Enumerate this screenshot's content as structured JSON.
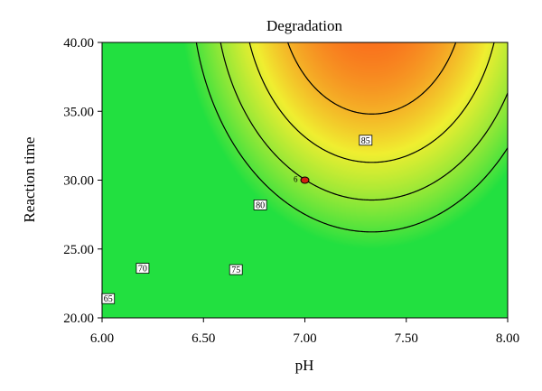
{
  "chart_data": {
    "type": "contour",
    "title": "Degradation",
    "xlabel": "pH",
    "ylabel": "Reaction time",
    "xlim": [
      6.0,
      8.0
    ],
    "ylim": [
      20.0,
      40.0
    ],
    "x_ticks": [
      "6.00",
      "6.50",
      "7.00",
      "7.50",
      "8.00"
    ],
    "y_ticks": [
      "20.00",
      "25.00",
      "30.00",
      "35.00",
      "40.00"
    ],
    "model": {
      "description_note": "",
      "b0": 85.5,
      "x_center": 7.33,
      "y_center": 44.0,
      "a_x": 26.0,
      "a_y": 0.065
    },
    "contours": [
      {
        "level": 65,
        "label": "65",
        "label_at": [
          6.03,
          21.4
        ]
      },
      {
        "level": 70,
        "label": "70",
        "label_at": [
          6.2,
          23.6
        ]
      },
      {
        "level": 75,
        "label": "75",
        "label_at": [
          6.66,
          23.5
        ]
      },
      {
        "level": 80,
        "label": "80",
        "label_at": [
          6.78,
          28.2
        ]
      },
      {
        "level": 85,
        "label": "85",
        "label_at": [
          7.3,
          32.9
        ]
      }
    ],
    "design_point": {
      "x": 7.0,
      "y": 30.0,
      "label": "6"
    },
    "colors": {
      "low": "#22e040",
      "mid": "#f0ee30",
      "high": "#ff2010"
    },
    "color_range": [
      62,
      90
    ],
    "grid": false,
    "legend": "none"
  }
}
